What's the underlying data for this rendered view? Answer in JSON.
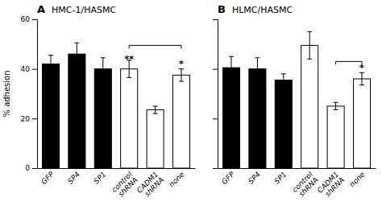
{
  "chart_data": [
    {
      "type": "bar",
      "title": "HMC-1/HASMC",
      "ylabel": "% adhesion",
      "categories": [
        "GFP",
        "SP4",
        "SP1",
        "control\nshRNA",
        "CADM1\nshRNA",
        "none"
      ],
      "values": [
        42,
        46,
        40,
        40,
        23.5,
        37.5
      ],
      "errors": [
        3.5,
        4.5,
        4.5,
        3.5,
        1.5,
        2.5
      ],
      "colors": [
        "black",
        "black",
        "black",
        "white",
        "white",
        "white"
      ],
      "ylim": [
        0,
        60
      ],
      "yticks": [
        0,
        20,
        40,
        60
      ],
      "bracket": {
        "x1": "control\nshRNA",
        "x2": "none",
        "y": 49.5
      },
      "annotations": [
        {
          "text": "A"
        },
        {
          "text": "**",
          "x": "control\nshRNA",
          "y": 42.5
        },
        {
          "text": "*",
          "x": "none",
          "y": 40.5
        }
      ]
    },
    {
      "type": "bar",
      "title": "HLMC/HASMC",
      "categories": [
        "GFP",
        "SP4",
        "SP1",
        "control\nshRNA",
        "CADM1\nshRNA",
        "none"
      ],
      "values": [
        40.5,
        40,
        35.5,
        49.5,
        25,
        36
      ],
      "errors": [
        4.5,
        4.5,
        2.5,
        5.5,
        1.5,
        2.5
      ],
      "colors": [
        "black",
        "black",
        "black",
        "white",
        "white",
        "white"
      ],
      "ylim": [
        0,
        60
      ],
      "yticks": [
        0,
        20,
        40,
        60
      ],
      "tick_labels": "x",
      "bracket": {
        "x1": "CADM1\nshRNA",
        "x2": "none",
        "y": 43
      },
      "annotations": [
        {
          "text": "B"
        },
        {
          "text": "*",
          "x": "none",
          "y": 39
        }
      ]
    }
  ]
}
